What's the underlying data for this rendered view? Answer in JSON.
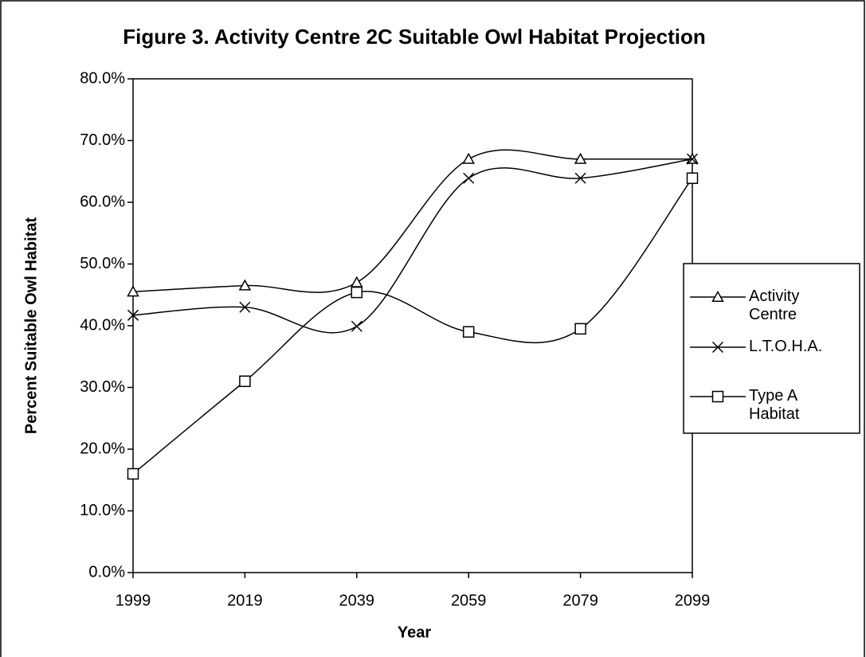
{
  "chart_data": {
    "type": "line",
    "title": "Figure 3.  Activity Centre 2C Suitable Owl Habitat Projection",
    "xlabel": "Year",
    "ylabel": "Percent Suitable Owl Habitat",
    "categories": [
      "1999",
      "2019",
      "2039",
      "2059",
      "2079",
      "2099"
    ],
    "series": [
      {
        "name": "Activity Centre",
        "color": "#000000",
        "marker": "triangle",
        "values": [
          45.5,
          46.5,
          47.0,
          67.0,
          67.0,
          67.0
        ]
      },
      {
        "name": "L.T.O.H.A.",
        "color": "#000000",
        "marker": "x",
        "values": [
          41.7,
          43.0,
          39.9,
          63.9,
          63.9,
          67.0
        ]
      },
      {
        "name": "Type A Habitat",
        "color": "#000000",
        "marker": "square",
        "values": [
          16.0,
          31.0,
          45.4,
          39.0,
          39.5,
          63.9
        ]
      }
    ],
    "smooth": true,
    "ylim": [
      0,
      80
    ],
    "yticks": [
      {
        "value": 0,
        "label": "0.0%"
      },
      {
        "value": 10,
        "label": "10.0%"
      },
      {
        "value": 20,
        "label": "20.0%"
      },
      {
        "value": 30,
        "label": "30.0%"
      },
      {
        "value": 40,
        "label": "40.0%"
      },
      {
        "value": 50,
        "label": "50.0%"
      },
      {
        "value": 60,
        "label": "60.0%"
      },
      {
        "value": 70,
        "label": "70.0%"
      },
      {
        "value": 80,
        "label": "80.0%"
      }
    ],
    "grid": false,
    "legend": "right"
  }
}
